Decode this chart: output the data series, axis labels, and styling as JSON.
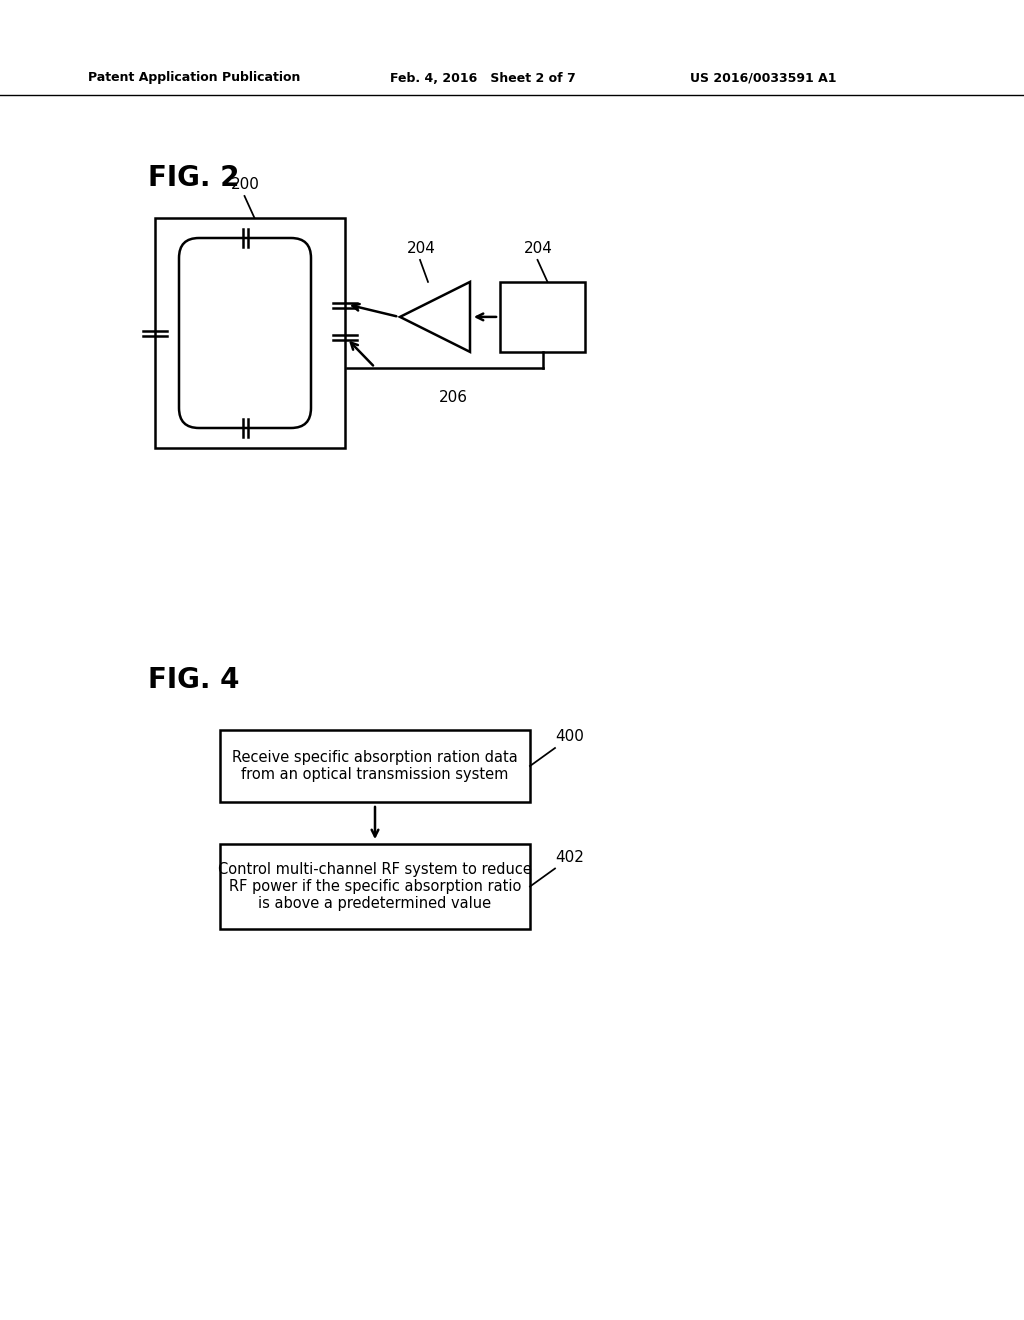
{
  "bg_color": "#ffffff",
  "header_left": "Patent Application Publication",
  "header_center": "Feb. 4, 2016   Sheet 2 of 7",
  "header_right": "US 2016/0033591 A1",
  "fig2_label": "FIG. 2",
  "fig4_label": "FIG. 4",
  "label_200": "200",
  "label_204a": "204",
  "label_204b": "204",
  "label_206": "206",
  "label_400": "400",
  "label_402": "402",
  "box400_text": "Receive specific absorption ration data\nfrom an optical transmission system",
  "box402_text": "Control multi-channel RF system to reduce\nRF power if the specific absorption ratio\nis above a predetermined value"
}
